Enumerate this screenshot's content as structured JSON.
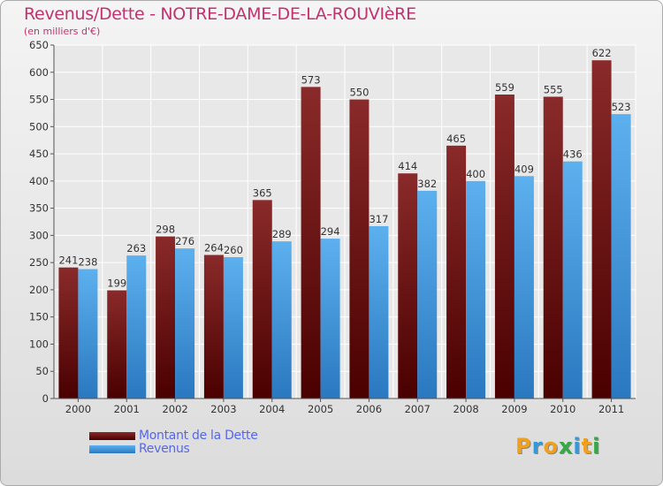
{
  "header": {
    "title": "Revenus/Dette - NOTRE-DAME-DE-LA-ROUVIèRE",
    "subtitle": "(en milliers d'€)"
  },
  "colors": {
    "dette": "#7a1a1a",
    "revenus": "#4da0e0",
    "title": "#c0336e",
    "legend_text": "#5566ee"
  },
  "chart_data": {
    "type": "bar",
    "categories": [
      "2000",
      "2001",
      "2002",
      "2003",
      "2004",
      "2005",
      "2006",
      "2007",
      "2008",
      "2009",
      "2010",
      "2011"
    ],
    "series": [
      {
        "name": "Montant de la Dette",
        "values": [
          241,
          199,
          298,
          264,
          365,
          573,
          550,
          414,
          465,
          559,
          555,
          622
        ]
      },
      {
        "name": "Revenus",
        "values": [
          238,
          263,
          276,
          260,
          289,
          294,
          317,
          382,
          400,
          409,
          436,
          523
        ]
      }
    ],
    "ylim": [
      0,
      650
    ],
    "yticks": [
      0,
      50,
      100,
      150,
      200,
      250,
      300,
      350,
      400,
      450,
      500,
      550,
      600,
      650
    ],
    "grid": true,
    "legend": "bottom-left"
  },
  "legend": {
    "items": [
      {
        "label": "Montant de la Dette"
      },
      {
        "label": "Revenus"
      }
    ]
  },
  "logo": {
    "letters": [
      "P",
      "r",
      "o",
      "x",
      "i",
      "t",
      "i"
    ],
    "colors": [
      "#f0a020",
      "#3399dd",
      "#f0a020",
      "#33aa44",
      "#3399dd",
      "#f0a020",
      "#33aa44"
    ]
  }
}
